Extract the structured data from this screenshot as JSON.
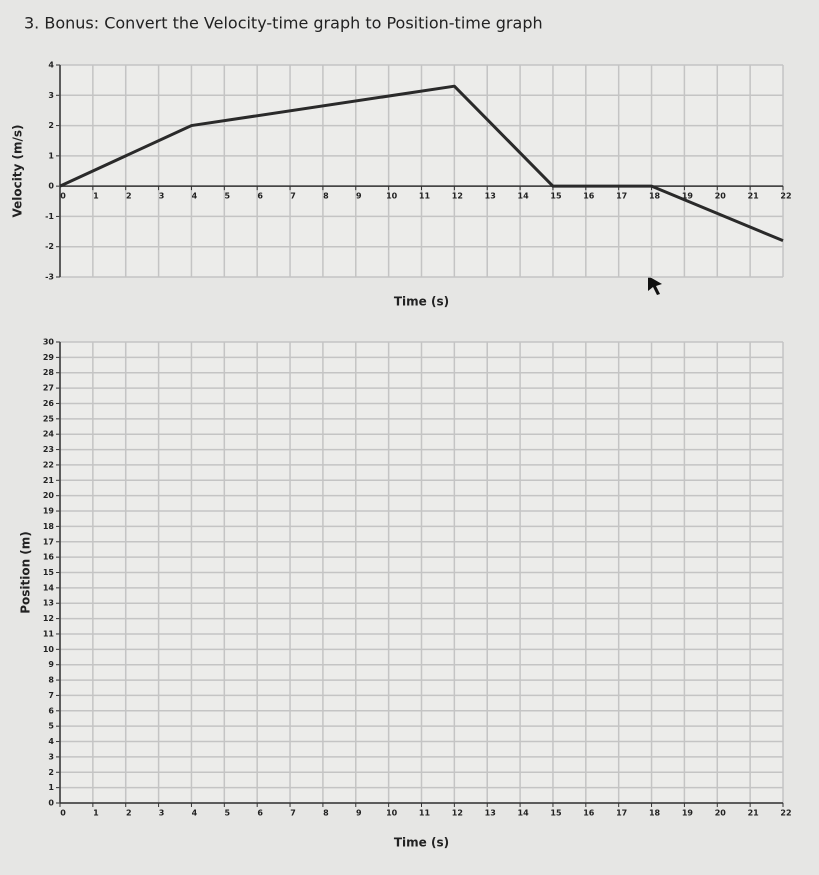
{
  "page_title": "3. Bonus: Convert the Velocity-time graph to Position-time graph",
  "chart_data": [
    {
      "type": "line",
      "xlabel": "Time (s)",
      "ylabel": "Velocity (m/s)",
      "x": [
        0,
        4,
        12,
        15,
        18,
        22
      ],
      "series": [
        {
          "color": "#2a2a2a",
          "values": [
            0,
            2,
            3.3,
            0,
            0,
            -1.8
          ]
        }
      ],
      "xlim": [
        0,
        22
      ],
      "ylim": [
        -3,
        4
      ],
      "xticks": [
        0,
        1,
        2,
        3,
        4,
        5,
        6,
        7,
        8,
        9,
        10,
        11,
        12,
        13,
        14,
        15,
        16,
        17,
        18,
        19,
        20,
        21,
        22
      ],
      "yticks": [
        -3,
        -2,
        -1,
        0,
        1,
        2,
        3,
        4
      ],
      "grid": true
    },
    {
      "type": "line",
      "xlabel": "Time (s)",
      "ylabel": "Position (m)",
      "xlim": [
        0,
        22
      ],
      "ylim": [
        0,
        30
      ],
      "xticks": [
        0,
        1,
        2,
        3,
        4,
        5,
        6,
        7,
        8,
        9,
        10,
        11,
        12,
        13,
        14,
        15,
        16,
        17,
        18,
        19,
        20,
        21,
        22
      ],
      "yticks": [
        0,
        1,
        2,
        3,
        4,
        5,
        6,
        7,
        8,
        9,
        10,
        11,
        12,
        13,
        14,
        15,
        16,
        17,
        18,
        19,
        20,
        21,
        22,
        23,
        24,
        25,
        26,
        27,
        28,
        29,
        30
      ],
      "grid": true
    }
  ]
}
